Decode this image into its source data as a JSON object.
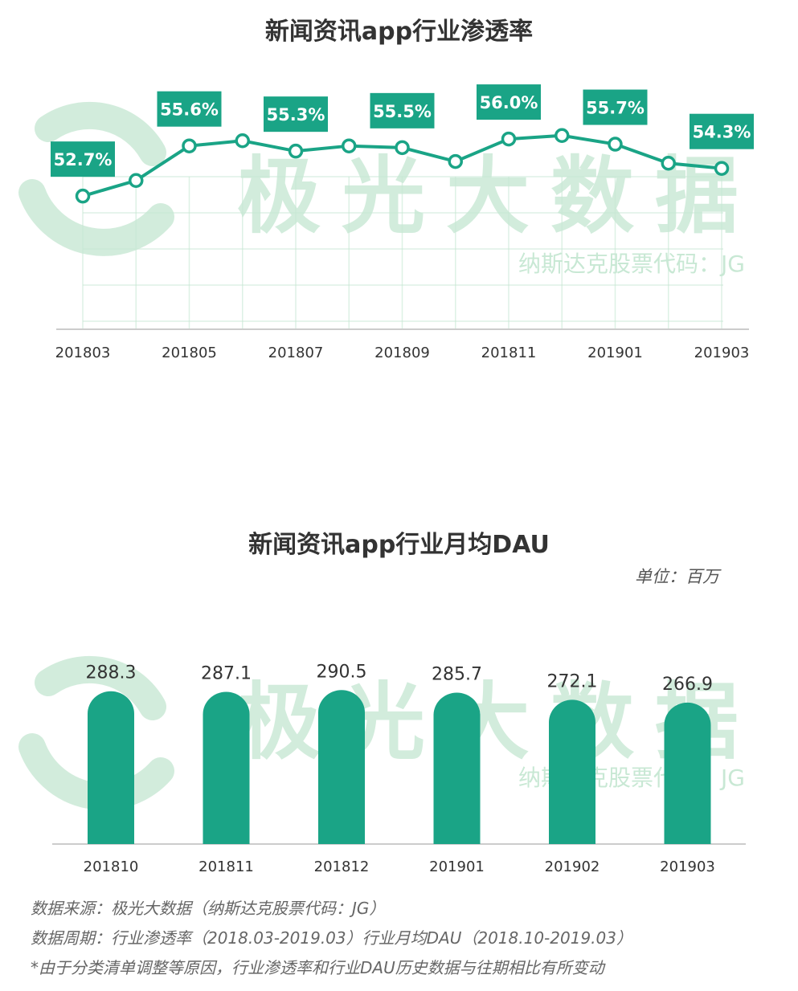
{
  "colors": {
    "accent": "#1aa486",
    "watermark": "#c8e8d4",
    "text": "#333333"
  },
  "watermark": {
    "brand": "极光大数据",
    "ticker": "纳斯达克股票代码：JG"
  },
  "chart_data": [
    {
      "type": "line",
      "title": "新闻资讯app行业渗透率",
      "x": [
        "201803",
        "201804",
        "201805",
        "201806",
        "201807",
        "201808",
        "201809",
        "201810",
        "201811",
        "201812",
        "201901",
        "201902",
        "201903"
      ],
      "tick_labels": [
        "201803",
        "201805",
        "201807",
        "201809",
        "201811",
        "201901",
        "201903"
      ],
      "values": [
        52.7,
        53.6,
        55.6,
        55.9,
        55.3,
        55.6,
        55.5,
        54.7,
        56.0,
        56.2,
        55.7,
        54.6,
        54.3
      ],
      "data_labels": [
        {
          "x": "201803",
          "text": "52.7%"
        },
        {
          "x": "201805",
          "text": "55.6%"
        },
        {
          "x": "201807",
          "text": "55.3%"
        },
        {
          "x": "201809",
          "text": "55.5%"
        },
        {
          "x": "201811",
          "text": "56.0%"
        },
        {
          "x": "201901",
          "text": "55.7%"
        },
        {
          "x": "201903",
          "text": "54.3%"
        }
      ],
      "ylim": [
        45,
        58
      ],
      "grid": false
    },
    {
      "type": "bar",
      "title": "新闻资讯app行业月均DAU",
      "unit": "单位：百万",
      "categories": [
        "201810",
        "201811",
        "201812",
        "201901",
        "201902",
        "201903"
      ],
      "values": [
        288.3,
        287.1,
        290.5,
        285.7,
        272.1,
        266.9
      ],
      "value_labels": [
        "288.3",
        "287.1",
        "290.5",
        "285.7",
        "272.1",
        "266.9"
      ],
      "ylim": [
        0,
        300
      ],
      "grid": false
    }
  ],
  "footer": {
    "source": "数据来源：极光大数据（纳斯达克股票代码：JG）",
    "period": "数据周期：行业渗透率（2018.03-2019.03）行业月均DAU（2018.10-2019.03）",
    "note": "*由于分类清单调整等原因，行业渗透率和行业DAU历史数据与往期相比有所变动"
  }
}
